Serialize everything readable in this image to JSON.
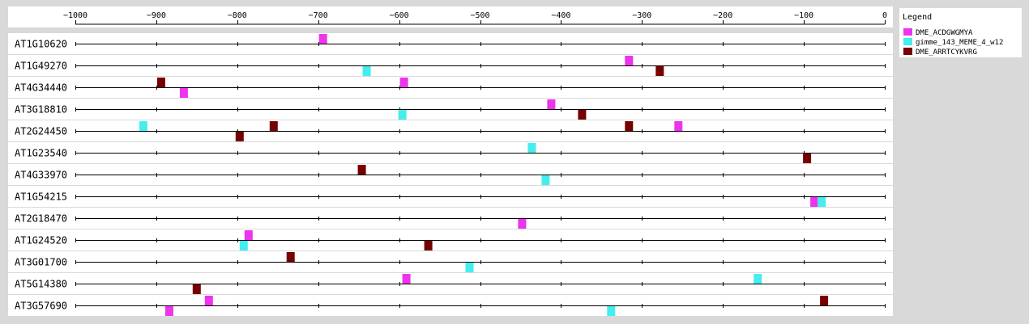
{
  "chart_data": {
    "type": "scatter",
    "xlim": [
      -1000,
      0
    ],
    "x_ticks": [
      -1000,
      -900,
      -800,
      -700,
      -600,
      -500,
      -400,
      -300,
      -200,
      -100,
      0
    ],
    "x_tick_labels": [
      "−1000",
      "−900",
      "−800",
      "−700",
      "−600",
      "−500",
      "−400",
      "−300",
      "−200",
      "−100",
      "0"
    ],
    "legend_title": "Legend",
    "legend_position": "top-right",
    "motifs": [
      {
        "name": "DME_ACDGWGMYA",
        "color": "#ee33ee"
      },
      {
        "name": "gimme_143_MEME_4_w12",
        "color": "#44eeee"
      },
      {
        "name": "DME_ARRTCYKVRG",
        "color": "#770000"
      }
    ],
    "genes": [
      {
        "name": "AT1G10620",
        "sites": [
          {
            "motif": 0,
            "x": -694,
            "strand": "+"
          }
        ]
      },
      {
        "name": "AT1G49270",
        "sites": [
          {
            "motif": 1,
            "x": -640,
            "strand": "-"
          },
          {
            "motif": 2,
            "x": -278,
            "strand": "-"
          },
          {
            "motif": 0,
            "x": -316,
            "strand": "+"
          }
        ]
      },
      {
        "name": "AT4G34440",
        "sites": [
          {
            "motif": 0,
            "x": -866,
            "strand": "-"
          },
          {
            "motif": 2,
            "x": -894,
            "strand": "+"
          },
          {
            "motif": 0,
            "x": -594,
            "strand": "+"
          }
        ]
      },
      {
        "name": "AT3G18810",
        "sites": [
          {
            "motif": 1,
            "x": -596,
            "strand": "-"
          },
          {
            "motif": 2,
            "x": -374,
            "strand": "-"
          },
          {
            "motif": 0,
            "x": -412,
            "strand": "+"
          }
        ]
      },
      {
        "name": "AT2G24450",
        "sites": [
          {
            "motif": 2,
            "x": -797,
            "strand": "-"
          },
          {
            "motif": 1,
            "x": -916,
            "strand": "+"
          },
          {
            "motif": 2,
            "x": -755,
            "strand": "+"
          },
          {
            "motif": 2,
            "x": -316,
            "strand": "+"
          },
          {
            "motif": 0,
            "x": -255,
            "strand": "+"
          }
        ]
      },
      {
        "name": "AT1G23540",
        "sites": [
          {
            "motif": 2,
            "x": -96,
            "strand": "-"
          },
          {
            "motif": 1,
            "x": -436,
            "strand": "+"
          }
        ]
      },
      {
        "name": "AT4G33970",
        "sites": [
          {
            "motif": 1,
            "x": -419,
            "strand": "-"
          },
          {
            "motif": 2,
            "x": -646,
            "strand": "+"
          }
        ]
      },
      {
        "name": "AT1G54215",
        "sites": [
          {
            "motif": 0,
            "x": -87,
            "strand": "-"
          },
          {
            "motif": 1,
            "x": -78,
            "strand": "-"
          }
        ]
      },
      {
        "name": "AT2G18470",
        "sites": [
          {
            "motif": 0,
            "x": -448,
            "strand": "-"
          }
        ]
      },
      {
        "name": "AT1G24520",
        "sites": [
          {
            "motif": 1,
            "x": -792,
            "strand": "-"
          },
          {
            "motif": 2,
            "x": -564,
            "strand": "-"
          },
          {
            "motif": 0,
            "x": -786,
            "strand": "+"
          }
        ]
      },
      {
        "name": "AT3G01700",
        "sites": [
          {
            "motif": 1,
            "x": -513,
            "strand": "-"
          },
          {
            "motif": 2,
            "x": -734,
            "strand": "+"
          }
        ]
      },
      {
        "name": "AT5G14380",
        "sites": [
          {
            "motif": 2,
            "x": -850,
            "strand": "-"
          },
          {
            "motif": 0,
            "x": -591,
            "strand": "+"
          },
          {
            "motif": 1,
            "x": -157,
            "strand": "+"
          }
        ]
      },
      {
        "name": "AT3G57690",
        "sites": [
          {
            "motif": 0,
            "x": -884,
            "strand": "-"
          },
          {
            "motif": 1,
            "x": -338,
            "strand": "-"
          },
          {
            "motif": 0,
            "x": -835,
            "strand": "+"
          },
          {
            "motif": 2,
            "x": -75,
            "strand": "+"
          }
        ]
      }
    ]
  }
}
